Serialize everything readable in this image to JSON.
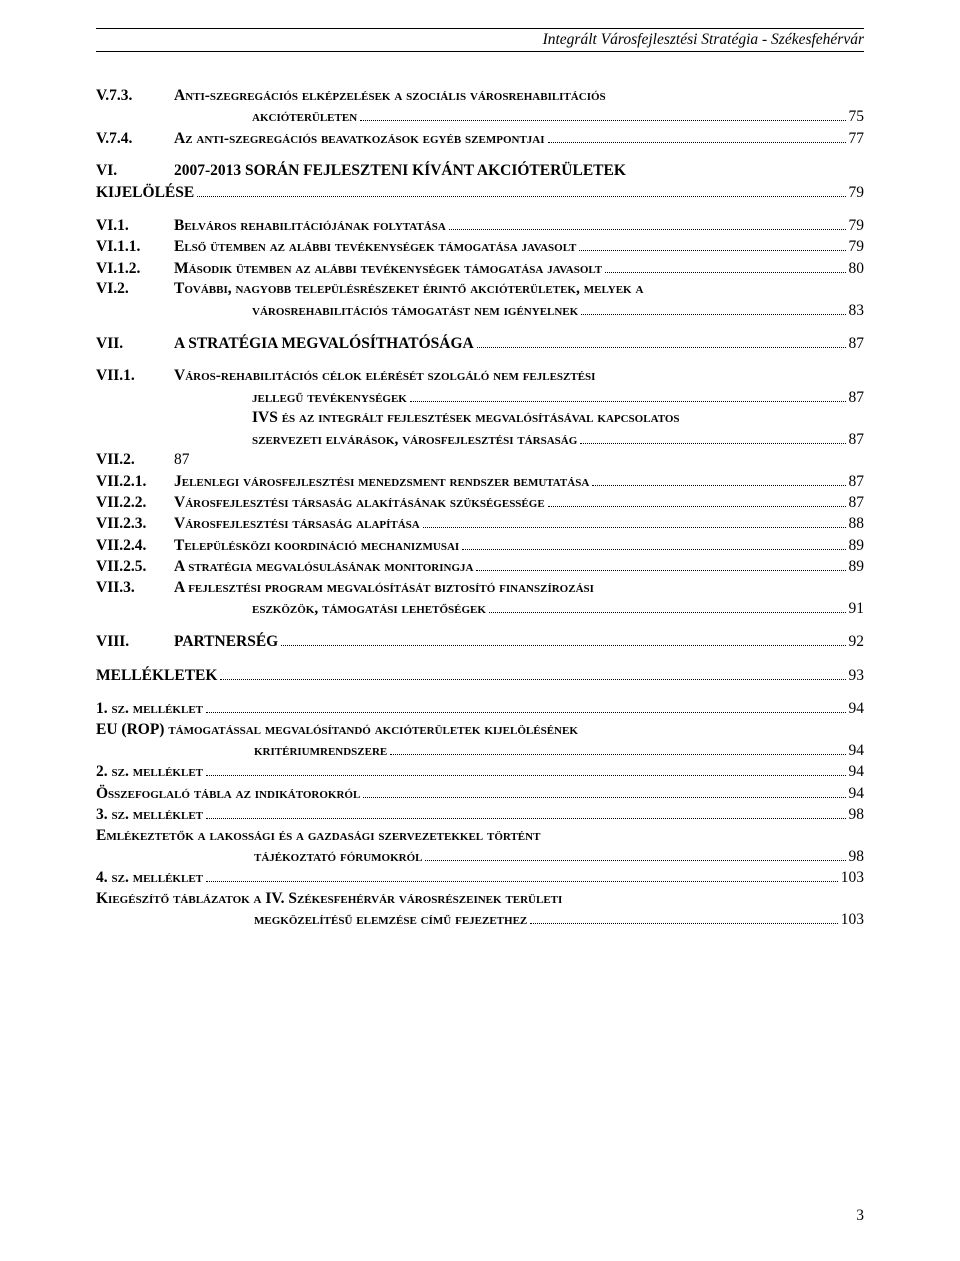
{
  "header": {
    "title": "Integrált Városfejlesztési Stratégia - Székesfehérvár"
  },
  "pageNumber": "3",
  "rows": [
    {
      "cls": "grp",
      "label": "V.7.3.",
      "labelW": "lbl-w1",
      "labelBold": true,
      "text": "Anti-szegregációs elképzelések a szociális városrehabilitációs",
      "sc": true,
      "bold": true,
      "noDots": true
    },
    {
      "cls": "",
      "label": "",
      "labelW": "lbl-w1",
      "indent": "indent-cont2",
      "text": "akcióterületen",
      "sc": true,
      "bold": true,
      "page": "75"
    },
    {
      "cls": "",
      "label": "V.7.4.",
      "labelW": "lbl-w1",
      "labelBold": true,
      "text": "Az anti-szegregációs beavatkozások egyéb szempontjai",
      "sc": true,
      "bold": true,
      "page": "77"
    },
    {
      "cls": "grp",
      "label": "VI.",
      "labelW": "lbl-w1",
      "labelBold": true,
      "text": "2007-2013 SORÁN FEJLESZTENI KÍVÁNT AKCIÓTERÜLETEK",
      "bold": true,
      "noDots": true
    },
    {
      "cls": "",
      "label": "",
      "labelW": "",
      "text": "KIJELÖLÉSE",
      "bold": true,
      "page": "79"
    },
    {
      "cls": "grp",
      "label": "VI.1.",
      "labelW": "lbl-w1",
      "labelBold": true,
      "text": "Belváros rehabilitációjának folytatása",
      "sc": true,
      "bold": true,
      "page": "79"
    },
    {
      "cls": "",
      "label": "VI.1.1.",
      "labelW": "lbl-w1",
      "labelBold": true,
      "text": "Első ütemben az alábbi tevékenységek támogatása javasolt",
      "sc": true,
      "bold": true,
      "page": "79"
    },
    {
      "cls": "",
      "label": "VI.1.2.",
      "labelW": "lbl-w1",
      "labelBold": true,
      "text": "Második ütemben az alábbi tevékenységek támogatása javasolt",
      "sc": true,
      "bold": true,
      "page": "80"
    },
    {
      "cls": "",
      "label": "VI.2.",
      "labelW": "lbl-w1",
      "labelBold": true,
      "text": "További, nagyobb településrészeket érintő akcióterületek, melyek a",
      "sc": true,
      "bold": true,
      "noDots": true
    },
    {
      "cls": "",
      "label": "",
      "labelW": "lbl-w1",
      "indent": "indent-cont2",
      "text": "városrehabilitációs támogatást nem igényelnek",
      "sc": true,
      "bold": true,
      "page": "83"
    },
    {
      "cls": "grp",
      "label": "VII.",
      "labelW": "lbl-w1",
      "labelBold": true,
      "text": "A STRATÉGIA MEGVALÓSÍTHATÓSÁGA",
      "bold": true,
      "page": "87"
    },
    {
      "cls": "grp",
      "label": "VII.1.",
      "labelW": "lbl-w1",
      "labelBold": true,
      "text": "Város-rehabilitációs célok elérését szolgáló nem fejlesztési",
      "sc": true,
      "bold": true,
      "noDots": true
    },
    {
      "cls": "",
      "label": "",
      "labelW": "lbl-w1",
      "indent": "indent-cont2",
      "text": "jellegű tevékenységek",
      "sc": true,
      "bold": true,
      "page": "87"
    },
    {
      "cls": "",
      "label": "",
      "labelW": "lbl-w1",
      "indent": "indent-cont2",
      "text": "IVS és az integrált fejlesztések megvalósításával kapcsolatos",
      "sc": true,
      "bold": true,
      "noDots": true
    },
    {
      "cls": "",
      "label": "",
      "labelW": "lbl-w1",
      "indent": "indent-cont2",
      "text": "szervezeti elvárások, városfejlesztési társaság",
      "sc": true,
      "bold": true,
      "page": "87"
    },
    {
      "cls": "",
      "label": "VII.2.",
      "labelW": "lbl-w1",
      "labelBold": true,
      "text": "87",
      "bold": false,
      "noDots": true,
      "plain": true
    },
    {
      "cls": "",
      "label": "VII.2.1.",
      "labelW": "lbl-w1",
      "labelBold": true,
      "text": "Jelenlegi városfejlesztési menedzsment rendszer bemutatása",
      "sc": true,
      "bold": true,
      "page": "87"
    },
    {
      "cls": "",
      "label": "VII.2.2.",
      "labelW": "lbl-w1",
      "labelBold": true,
      "text": "Városfejlesztési társaság alakításának szükségessége",
      "sc": true,
      "bold": true,
      "page": "87"
    },
    {
      "cls": "",
      "label": "VII.2.3.",
      "labelW": "lbl-w1",
      "labelBold": true,
      "text": "Városfejlesztési társaság alapítása",
      "sc": true,
      "bold": true,
      "page": "88"
    },
    {
      "cls": "",
      "label": "VII.2.4.",
      "labelW": "lbl-w1",
      "labelBold": true,
      "text": "Településközi koordináció mechanizmusai",
      "sc": true,
      "bold": true,
      "page": "89"
    },
    {
      "cls": "",
      "label": "VII.2.5.",
      "labelW": "lbl-w1",
      "labelBold": true,
      "text": "A stratégia megvalósulásának monitoringja",
      "sc": true,
      "bold": true,
      "page": "89"
    },
    {
      "cls": "",
      "label": "VII.3.",
      "labelW": "lbl-w1",
      "labelBold": true,
      "text": "A fejlesztési program megvalósítását biztosító finanszírozási",
      "sc": true,
      "bold": true,
      "noDots": true
    },
    {
      "cls": "",
      "label": "",
      "labelW": "lbl-w1",
      "indent": "indent-cont2",
      "text": "eszközök, támogatási lehetőségek",
      "sc": true,
      "bold": true,
      "page": "91"
    },
    {
      "cls": "grp",
      "label": "VIII.",
      "labelW": "lbl-w1",
      "labelBold": true,
      "text": "PARTNERSÉG",
      "bold": true,
      "page": "92"
    },
    {
      "cls": "grp",
      "label": "",
      "labelW": "",
      "text": "MELLÉKLETEK",
      "bold": true,
      "page": "93"
    },
    {
      "cls": "grp",
      "label": "",
      "labelW": "",
      "text": "1. sz. melléklet",
      "sc": true,
      "bold": true,
      "page": "94"
    },
    {
      "cls": "",
      "label": "",
      "labelW": "",
      "text": "EU (ROP) támogatással megvalósítandó akcióterületek kijelölésének",
      "sc": true,
      "bold": true,
      "noDots": true
    },
    {
      "cls": "",
      "label": "",
      "labelW": "",
      "indent": "indent-cont",
      "text": "kritériumrendszere",
      "sc": true,
      "bold": true,
      "page": "94"
    },
    {
      "cls": "",
      "label": "",
      "labelW": "",
      "text": "2. sz. melléklet",
      "sc": true,
      "bold": true,
      "page": "94"
    },
    {
      "cls": "",
      "label": "",
      "labelW": "",
      "text": "Összefoglaló tábla az indikátorokról",
      "sc": true,
      "bold": true,
      "page": "94"
    },
    {
      "cls": "",
      "label": "",
      "labelW": "",
      "text": "3. sz. melléklet",
      "sc": true,
      "bold": true,
      "page": "98"
    },
    {
      "cls": "",
      "label": "",
      "labelW": "",
      "text": "Emlékeztetők a lakossági és a gazdasági szervezetekkel történt",
      "sc": true,
      "bold": true,
      "noDots": true
    },
    {
      "cls": "",
      "label": "",
      "labelW": "",
      "indent": "indent-cont",
      "text": "tájékoztató fórumokról",
      "sc": true,
      "bold": true,
      "page": "98"
    },
    {
      "cls": "",
      "label": "",
      "labelW": "",
      "text": "4. sz. melléklet",
      "sc": true,
      "bold": true,
      "page": "103"
    },
    {
      "cls": "",
      "label": "",
      "labelW": "",
      "text": "Kiegészítő táblázatok a IV. Székesfehérvár városrészeinek területi",
      "sc": true,
      "bold": true,
      "noDots": true
    },
    {
      "cls": "",
      "label": "",
      "labelW": "",
      "indent": "indent-cont",
      "text": "megközelítésű elemzése című fejezethez",
      "sc": true,
      "bold": true,
      "page": "103"
    }
  ]
}
